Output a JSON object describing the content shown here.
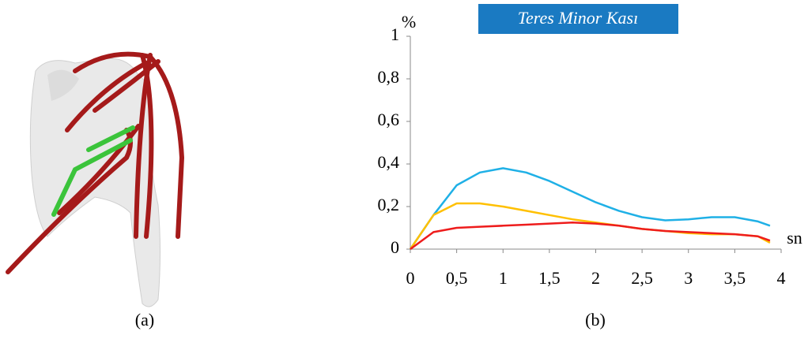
{
  "chart_data": {
    "type": "line",
    "title": "Teres Minor Kası",
    "title_background": "#1a7ac2",
    "ylabel": "%",
    "xlabel": "sn",
    "x": [
      0,
      0.25,
      0.5,
      0.75,
      1,
      1.25,
      1.5,
      1.75,
      2,
      2.25,
      2.5,
      2.75,
      3,
      3.25,
      3.5,
      3.75,
      3.88
    ],
    "series": [
      {
        "color": "#1fb0e6",
        "values": [
          0,
          0.16,
          0.3,
          0.36,
          0.38,
          0.36,
          0.32,
          0.27,
          0.22,
          0.18,
          0.15,
          0.135,
          0.14,
          0.15,
          0.15,
          0.13,
          0.11
        ]
      },
      {
        "color": "#ffc000",
        "values": [
          0,
          0.16,
          0.215,
          0.215,
          0.2,
          0.18,
          0.16,
          0.14,
          0.125,
          0.11,
          0.095,
          0.085,
          0.075,
          0.07,
          0.07,
          0.06,
          0.03
        ]
      },
      {
        "color": "#ee1c1c",
        "values": [
          0,
          0.08,
          0.1,
          0.105,
          0.11,
          0.115,
          0.12,
          0.125,
          0.12,
          0.11,
          0.095,
          0.085,
          0.08,
          0.075,
          0.07,
          0.06,
          0.04
        ]
      }
    ],
    "xlim": [
      0,
      4
    ],
    "xticks": [
      0,
      {
        "value": 0.5,
        "label": "0,5"
      },
      1,
      {
        "value": 1.5,
        "label": "1,5"
      },
      2,
      {
        "value": 2.5,
        "label": "2,5"
      },
      3,
      {
        "value": 3.5,
        "label": "3,5"
      },
      4
    ],
    "ylim": [
      0,
      1
    ],
    "yticks": [
      0,
      {
        "value": 0.2,
        "label": "0,2"
      },
      {
        "value": 0.4,
        "label": "0,4"
      },
      {
        "value": 0.6,
        "label": "0,6"
      },
      {
        "value": 0.8,
        "label": "0,8"
      },
      1
    ],
    "grid": false
  },
  "captions": [
    "(a)",
    "(b)"
  ]
}
